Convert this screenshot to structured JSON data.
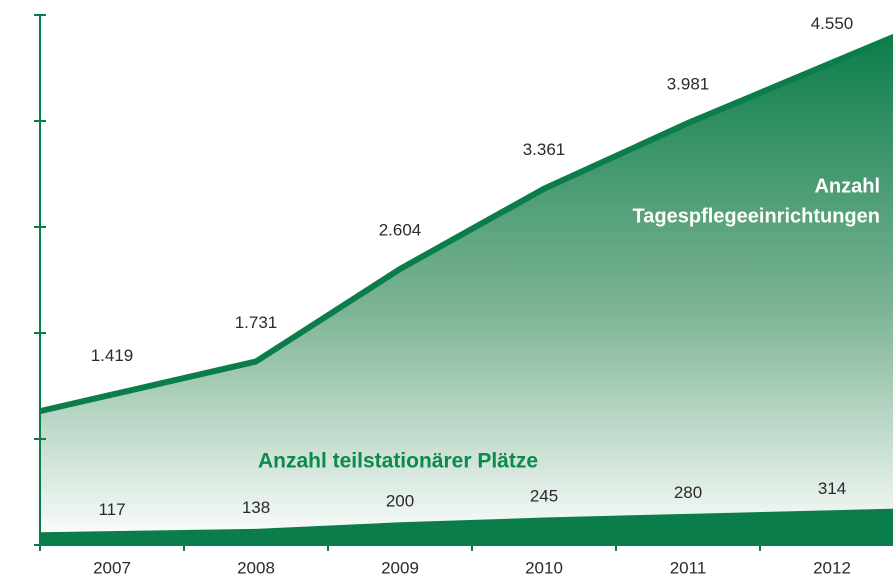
{
  "chart_data": {
    "type": "area",
    "categories": [
      "2007",
      "2008",
      "2009",
      "2010",
      "2011",
      "2012"
    ],
    "series": [
      {
        "label_lines": [
          "Anzahl",
          "Tagespflegeeinrichtungen"
        ],
        "color": "#0b7d4a",
        "values": [
          1419,
          1731,
          2604,
          3361,
          3981,
          4550
        ],
        "value_labels": [
          "1.419",
          "1.731",
          "2.604",
          "3.361",
          "3.981",
          "4.550"
        ]
      },
      {
        "name": "Anzahl teilstationärer Plätze",
        "color": "#0b7d4a",
        "values": [
          117,
          138,
          200,
          245,
          280,
          314
        ]
      }
    ],
    "ylim": [
      0,
      5000
    ],
    "yticks": [
      0,
      1000,
      2000,
      3000,
      4000,
      5000
    ]
  }
}
